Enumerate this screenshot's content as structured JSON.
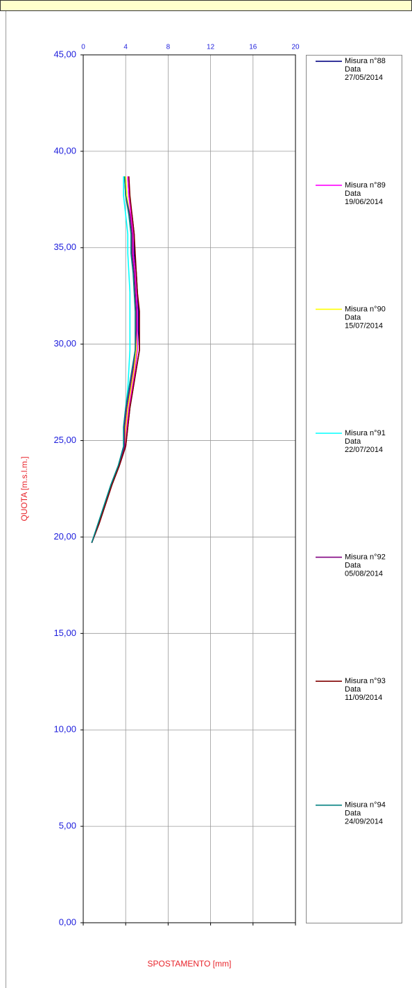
{
  "chart_data": {
    "type": "line",
    "x_label": "SPOSTAMENTO [mm]",
    "y_label": "QUOTA [m.s.l.m.]",
    "xlim": [
      0,
      20
    ],
    "xticks": [
      0,
      4,
      8,
      12,
      16,
      20
    ],
    "ylim": [
      0,
      45
    ],
    "yticks": [
      {
        "value": 0,
        "label": "0,00"
      },
      {
        "value": 5,
        "label": "5,00"
      },
      {
        "value": 10,
        "label": "10,00"
      },
      {
        "value": 15,
        "label": "15,00"
      },
      {
        "value": 20,
        "label": "20,00"
      },
      {
        "value": 25,
        "label": "25,00"
      },
      {
        "value": 30,
        "label": "30,00"
      },
      {
        "value": 35,
        "label": "35,00"
      },
      {
        "value": 40,
        "label": "40,00"
      },
      {
        "value": 45,
        "label": "45,00"
      }
    ],
    "grid": true,
    "legend_date_label": "Data",
    "depths": [
      19.7,
      20.7,
      21.7,
      22.7,
      23.7,
      24.7,
      25.7,
      26.7,
      27.7,
      28.7,
      29.7,
      30.7,
      31.7,
      32.7,
      33.7,
      34.7,
      35.7,
      36.7,
      37.7,
      38.7
    ],
    "series": [
      {
        "name": "Misura n°88",
        "date": "27/05/2014",
        "color": "#000080",
        "values": [
          0.8,
          1.5,
          2.1,
          2.7,
          3.4,
          4.0,
          4.2,
          4.4,
          4.7,
          5.0,
          5.3,
          5.2,
          5.2,
          5.1,
          5.0,
          4.8,
          4.8,
          4.6,
          4.3,
          4.2
        ]
      },
      {
        "name": "Misura n°89",
        "date": "19/06/2014",
        "color": "#ff00ff",
        "values": [
          0.8,
          1.5,
          2.1,
          2.7,
          3.4,
          4.0,
          4.1,
          4.3,
          4.6,
          4.9,
          5.1,
          5.1,
          5.1,
          5.0,
          4.9,
          4.7,
          4.7,
          4.5,
          4.3,
          4.2
        ]
      },
      {
        "name": "Misura n°90",
        "date": "15/07/2014",
        "color": "#ffff00",
        "values": [
          0.8,
          1.5,
          2.1,
          2.7,
          3.4,
          3.9,
          4.0,
          4.2,
          4.5,
          4.8,
          5.0,
          5.0,
          5.0,
          4.9,
          4.8,
          4.6,
          4.6,
          4.4,
          4.1,
          4.0
        ]
      },
      {
        "name": "Misura n°91",
        "date": "22/07/2014",
        "color": "#00ffff",
        "values": [
          0.8,
          1.4,
          2.0,
          2.6,
          3.3,
          3.8,
          3.8,
          4.0,
          4.2,
          4.3,
          4.4,
          4.4,
          4.4,
          4.4,
          4.3,
          4.2,
          4.2,
          4.0,
          3.8,
          3.8
        ]
      },
      {
        "name": "Misura n°92",
        "date": "05/08/2014",
        "color": "#800080",
        "values": [
          0.8,
          1.5,
          2.1,
          2.7,
          3.4,
          3.9,
          3.9,
          4.1,
          4.4,
          4.7,
          4.9,
          5.0,
          5.0,
          4.9,
          4.8,
          4.6,
          4.6,
          4.4,
          4.0,
          3.9
        ]
      },
      {
        "name": "Misura n°93",
        "date": "11/09/2014",
        "color": "#800000",
        "values": [
          0.8,
          1.5,
          2.1,
          2.7,
          3.4,
          4.0,
          4.2,
          4.4,
          4.7,
          5.0,
          5.3,
          5.3,
          5.3,
          5.1,
          5.0,
          4.9,
          4.8,
          4.6,
          4.4,
          4.3
        ]
      },
      {
        "name": "Misura n°94",
        "date": "24/09/2014",
        "color": "#008080",
        "values": [
          0.8,
          1.4,
          2.0,
          2.6,
          3.3,
          3.8,
          3.8,
          4.0,
          4.3,
          4.6,
          4.9,
          4.9,
          4.9,
          4.8,
          4.7,
          4.5,
          4.5,
          4.3,
          4.0,
          3.9
        ]
      }
    ]
  }
}
